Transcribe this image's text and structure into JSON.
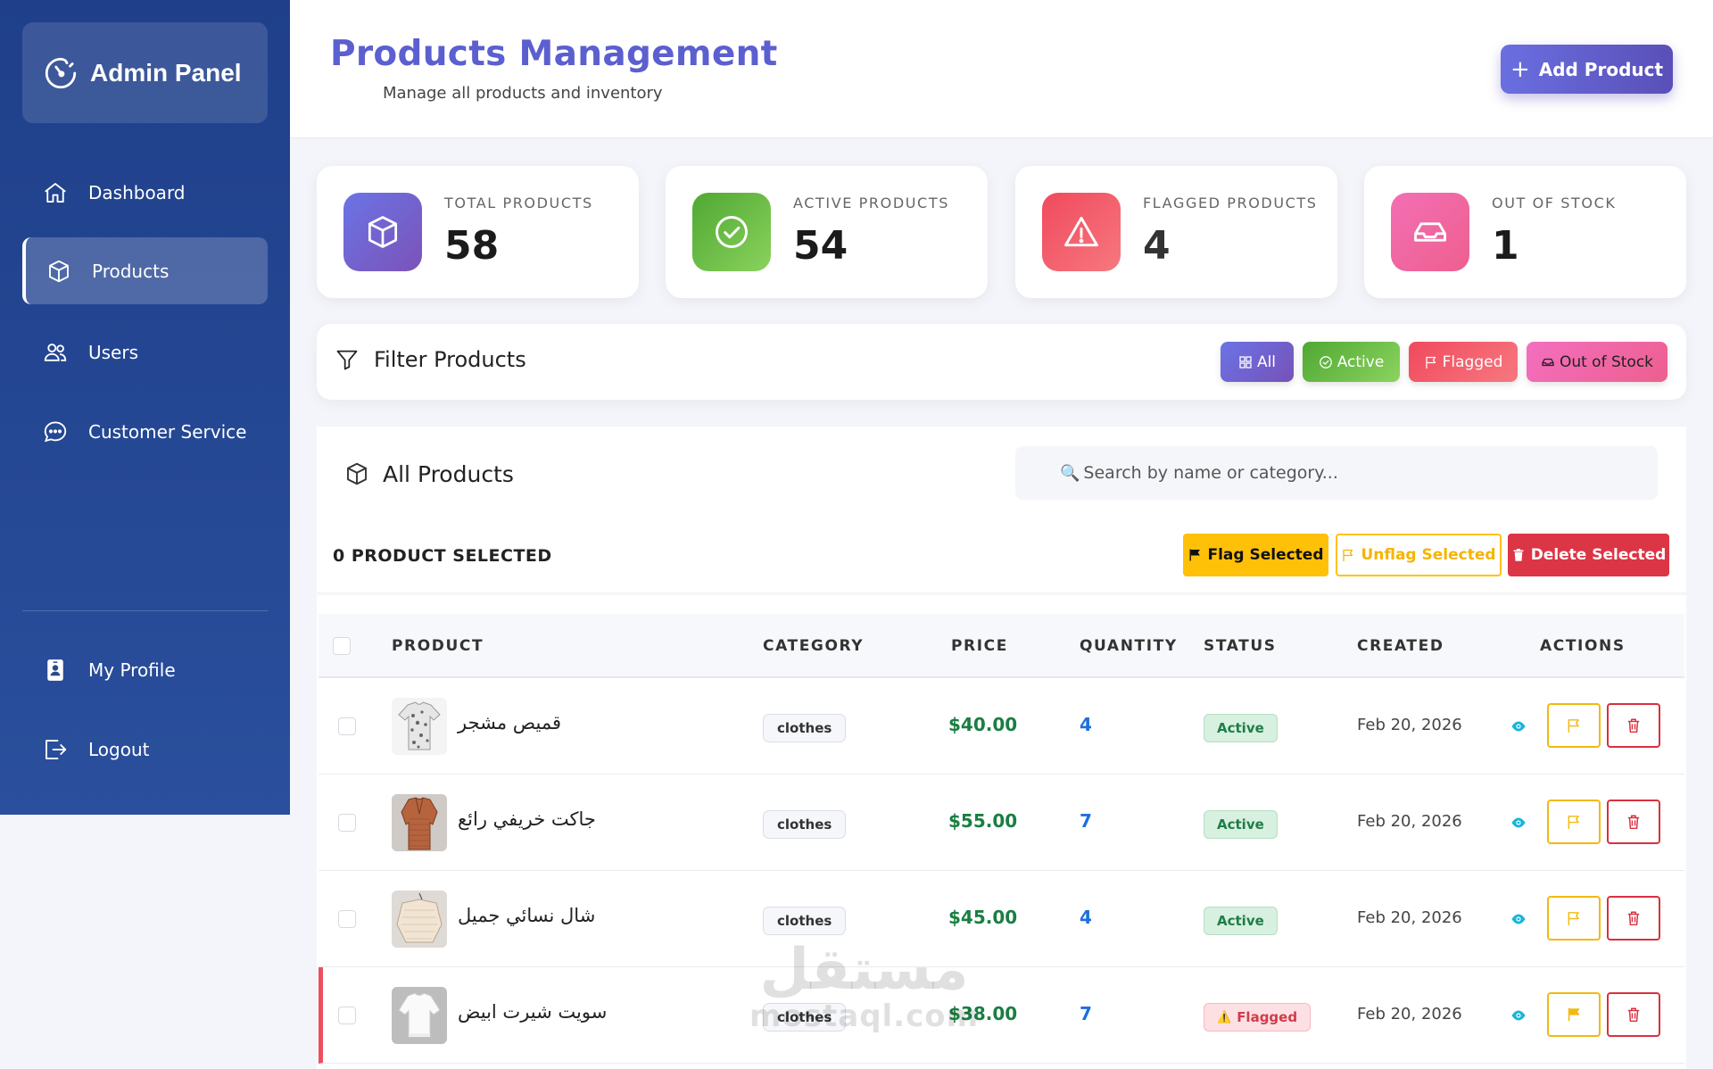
{
  "sidebar": {
    "brand": "Admin Panel",
    "items": [
      {
        "label": "Dashboard",
        "icon": "home-icon"
      },
      {
        "label": "Products",
        "icon": "box-icon",
        "active": true
      },
      {
        "label": "Users",
        "icon": "users-icon"
      },
      {
        "label": "Customer Service",
        "icon": "chat-icon"
      }
    ],
    "bottom_items": [
      {
        "label": "My Profile",
        "icon": "profile-badge-icon"
      },
      {
        "label": "Logout",
        "icon": "logout-icon"
      }
    ]
  },
  "header": {
    "title": "Products Management",
    "subtitle": "Manage all products and inventory",
    "add_button": "Add Product"
  },
  "stats": [
    {
      "label": "TOTAL PRODUCTS",
      "value": "58",
      "icon": "box-icon",
      "color": "#6a60d6"
    },
    {
      "label": "ACTIVE PRODUCTS",
      "value": "54",
      "icon": "check-circle-icon",
      "color": "#5cb63a"
    },
    {
      "label": "FLAGGED PRODUCTS",
      "value": "4",
      "icon": "warning-icon",
      "color": "#f0505f"
    },
    {
      "label": "OUT OF STOCK",
      "value": "1",
      "icon": "inbox-icon",
      "color": "#f06fb0"
    }
  ],
  "filter": {
    "title": "Filter Products",
    "chips": [
      {
        "label": "All",
        "icon": "grid-icon"
      },
      {
        "label": "Active",
        "icon": "check-circle-icon"
      },
      {
        "label": "Flagged",
        "icon": "flag-icon"
      },
      {
        "label": "Out of Stock",
        "icon": "inbox-icon"
      }
    ]
  },
  "products_panel": {
    "title": "All Products",
    "search_placeholder": "Search by name or category...",
    "selected_count": "0 PRODUCT SELECTED",
    "bulk_actions": {
      "flag": "Flag Selected",
      "unflag": "Unflag Selected",
      "delete": "Delete Selected"
    }
  },
  "table": {
    "columns": [
      "PRODUCT",
      "CATEGORY",
      "PRICE",
      "QUANTITY",
      "STATUS",
      "CREATED",
      "ACTIONS"
    ],
    "rows": [
      {
        "name": "قميص مشجر",
        "category": "clothes",
        "price": "$40.00",
        "quantity": "4",
        "status": "Active",
        "created": "Feb 20, 2026",
        "flagged": false
      },
      {
        "name": "جاكت خريفي رائع",
        "category": "clothes",
        "price": "$55.00",
        "quantity": "7",
        "status": "Active",
        "created": "Feb 20, 2026",
        "flagged": false
      },
      {
        "name": "شال نسائي جميل",
        "category": "clothes",
        "price": "$45.00",
        "quantity": "4",
        "status": "Active",
        "created": "Feb 20, 2026",
        "flagged": false
      },
      {
        "name": "سويت شيرت ابيض",
        "category": "clothes",
        "price": "$38.00",
        "quantity": "7",
        "status": "Flagged",
        "status_icon": "⚠️",
        "created": "Feb 20, 2026",
        "flagged": true
      }
    ]
  },
  "watermark": {
    "arabic": "مستقل",
    "latin": "mostaql.com"
  }
}
